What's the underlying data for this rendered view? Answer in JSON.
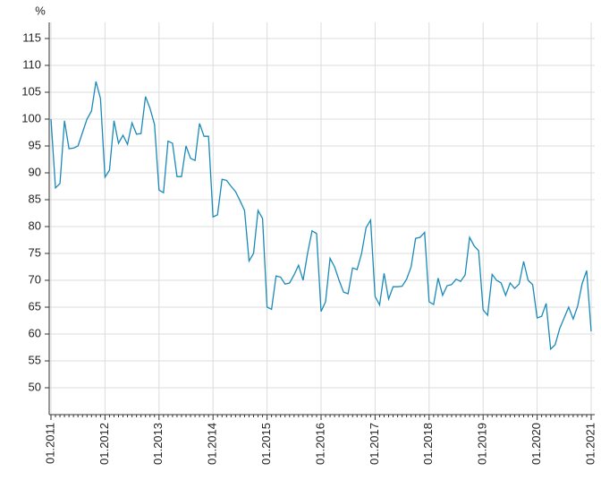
{
  "chart_data": {
    "type": "line",
    "y_label": "%",
    "categories": [
      "01.2011",
      null,
      null,
      null,
      null,
      null,
      null,
      null,
      null,
      null,
      null,
      null,
      "01.2012",
      null,
      null,
      null,
      null,
      null,
      null,
      null,
      null,
      null,
      null,
      null,
      "01.2013",
      null,
      null,
      null,
      null,
      null,
      null,
      null,
      null,
      null,
      null,
      null,
      "01.2014",
      null,
      null,
      null,
      null,
      null,
      null,
      null,
      null,
      null,
      null,
      null,
      "01.2015",
      null,
      null,
      null,
      null,
      null,
      null,
      null,
      null,
      null,
      null,
      null,
      "01.2016",
      null,
      null,
      null,
      null,
      null,
      null,
      null,
      null,
      null,
      null,
      null,
      "01.2017",
      null,
      null,
      null,
      null,
      null,
      null,
      null,
      null,
      null,
      null,
      null,
      "01.2018",
      null,
      null,
      null,
      null,
      null,
      null,
      null,
      null,
      null,
      null,
      null,
      "01.2019",
      null,
      null,
      null,
      null,
      null,
      null,
      null,
      null,
      null,
      null,
      null,
      "01.2020",
      null,
      null,
      null,
      null,
      null,
      null,
      null,
      null,
      null,
      null,
      null,
      "01.2021"
    ],
    "series": [
      {
        "color": "#1a8ab8",
        "values": [
          100,
          87.2,
          88,
          99.7,
          94.5,
          94.6,
          95,
          97.5,
          100,
          101.5,
          107,
          103.8,
          89.2,
          90.5,
          99.7,
          95.5,
          97,
          95.3,
          99.3,
          97.2,
          97.3,
          104.2,
          102,
          99,
          86.8,
          86.3,
          95.9,
          95.5,
          89.3,
          89.3,
          95,
          92.7,
          92.3,
          99.2,
          96.8,
          96.8,
          81.8,
          82.2,
          88.8,
          88.6,
          87.5,
          86.5,
          84.8,
          83,
          73.6,
          75,
          83,
          81.5,
          65,
          64.6,
          70.8,
          70.6,
          69.3,
          69.5,
          71,
          72.8,
          70,
          75,
          79.2,
          78.7,
          64.2,
          66,
          74.1,
          72.5,
          70,
          67.8,
          67.5,
          72.3,
          72,
          75,
          79.8,
          81.2,
          67,
          65.4,
          71.3,
          66.5,
          68.8,
          68.8,
          68.9,
          70.2,
          72.5,
          77.8,
          78,
          78.9,
          66,
          65.5,
          70.4,
          67.2,
          69,
          69.2,
          70.2,
          69.8,
          71,
          78,
          76.4,
          75.5,
          64.5,
          63.5,
          71.1,
          70,
          69.5,
          67.2,
          69.5,
          68.5,
          69.3,
          73.5,
          70,
          69.2,
          63,
          63.3,
          65.7,
          57.2,
          58,
          61,
          63,
          65,
          62.8,
          65.2,
          69.4,
          71.8,
          60.5
        ]
      }
    ],
    "ylim": [
      45,
      118
    ],
    "yticks": [
      50,
      55,
      60,
      65,
      70,
      75,
      80,
      85,
      90,
      95,
      100,
      105,
      110,
      115
    ],
    "grid": true
  }
}
